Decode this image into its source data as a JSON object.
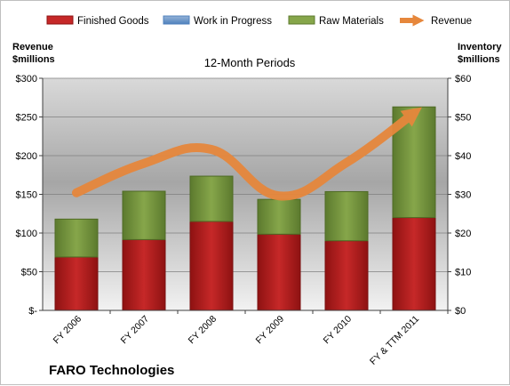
{
  "chart_data": {
    "type": "bar",
    "title": "12-Month Periods",
    "footer": "FARO Technologies",
    "y_left_label": [
      "Revenue",
      "$millions"
    ],
    "y_right_label": [
      "Inventory",
      "$millions"
    ],
    "categories": [
      "FY 2006",
      "FY 2007",
      "FY 2008",
      "FY 2009",
      "FY 2010",
      "FY & TTM 2011"
    ],
    "y_left_ticks": [
      "$-",
      "$50",
      "$100",
      "$150",
      "$200",
      "$250",
      "$300"
    ],
    "y_right_ticks": [
      "$0",
      "$10",
      "$20",
      "$30",
      "$40",
      "$50",
      "$60"
    ],
    "y_left_lim": [
      0,
      300
    ],
    "y_right_lim": [
      0,
      60
    ],
    "stack_series": [
      {
        "name": "Finished Goods",
        "color": "#b01c1c",
        "values": [
          13.8,
          18.3,
          23.0,
          19.7,
          18.0,
          24.0
        ]
      },
      {
        "name": "Work in Progress",
        "color": "#4f81bd",
        "values": [
          0,
          0,
          0,
          0,
          0,
          0
        ]
      },
      {
        "name": "Raw Materials",
        "color": "#77933c",
        "values": [
          9.8,
          12.5,
          11.7,
          9.0,
          12.7,
          28.6
        ]
      }
    ],
    "line_series": {
      "name": "Revenue",
      "color": "#e6873c",
      "values": [
        152,
        190,
        208,
        148,
        191,
        255
      ]
    },
    "legend_position": "top"
  }
}
